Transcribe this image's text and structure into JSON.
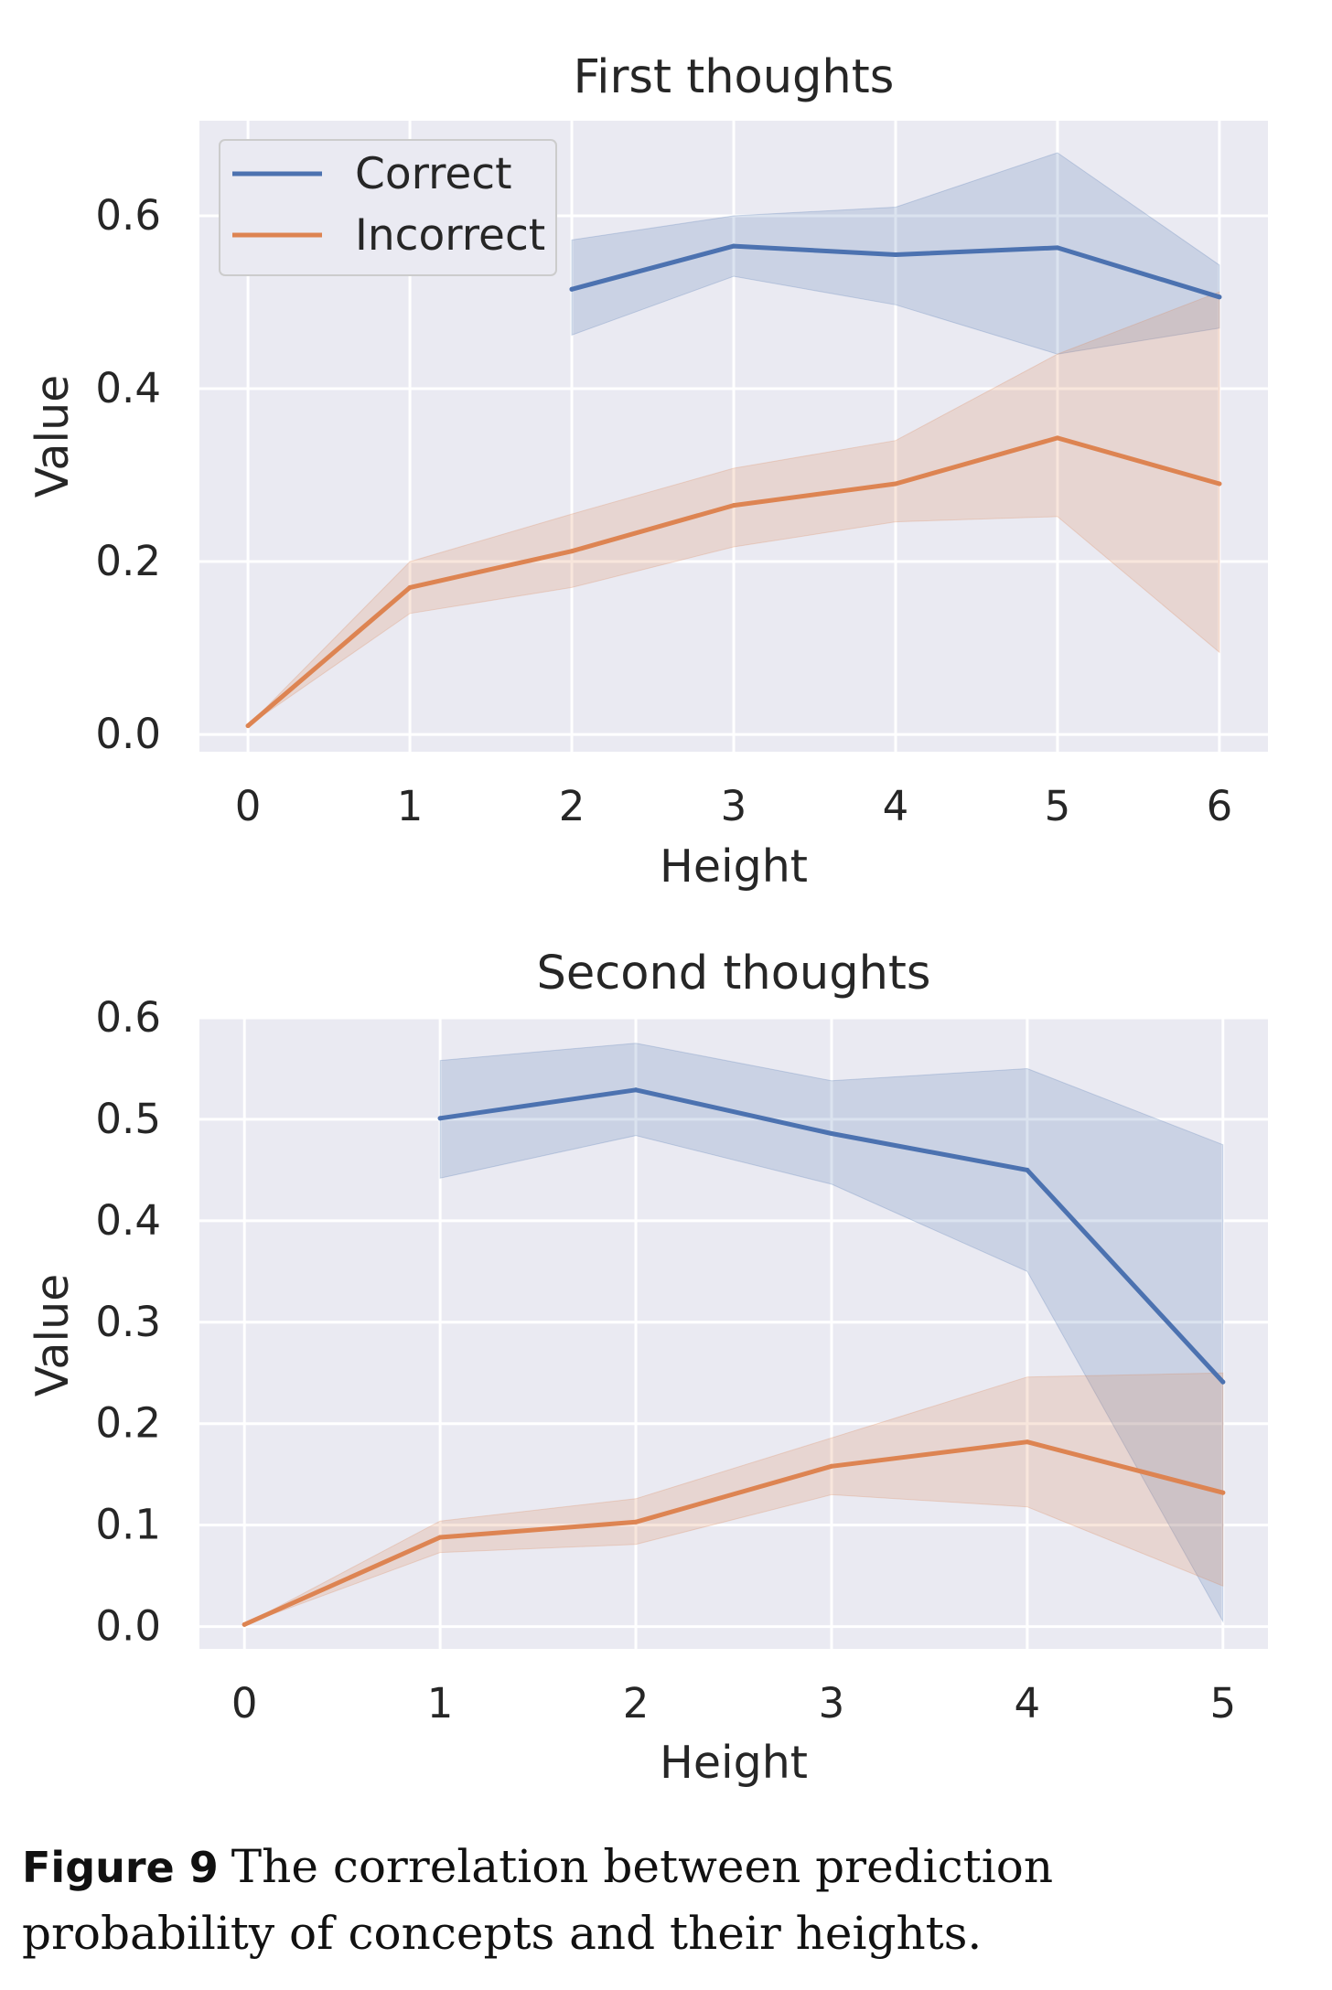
{
  "colors": {
    "correct": "#4c72b0",
    "incorrect": "#dd8452",
    "panel_bg": "#eaeaf2",
    "grid": "#ffffff"
  },
  "chart_data": [
    {
      "type": "line",
      "title": "First thoughts",
      "xlabel": "Height",
      "ylabel": "Value",
      "xlim": [
        -0.3,
        6.3
      ],
      "ylim": [
        -0.02,
        0.71
      ],
      "x_ticks": [
        "0",
        "1",
        "2",
        "3",
        "4",
        "5",
        "6"
      ],
      "y_ticks": [
        "0.0",
        "0.2",
        "0.4",
        "0.6"
      ],
      "legend": {
        "position": "top-left",
        "entries": [
          "Correct",
          "Incorrect"
        ]
      },
      "series": [
        {
          "name": "Correct",
          "x": [
            2,
            3,
            4,
            5,
            6
          ],
          "values": [
            0.515,
            0.565,
            0.555,
            0.563,
            0.506
          ],
          "lower": [
            0.462,
            0.53,
            0.497,
            0.44,
            0.47
          ],
          "upper": [
            0.572,
            0.6,
            0.61,
            0.673,
            0.543
          ]
        },
        {
          "name": "Incorrect",
          "x": [
            0,
            1,
            2,
            3,
            4,
            5,
            6
          ],
          "values": [
            0.01,
            0.17,
            0.212,
            0.265,
            0.29,
            0.343,
            0.29
          ],
          "lower": [
            0.01,
            0.14,
            0.17,
            0.217,
            0.246,
            0.252,
            0.095
          ],
          "upper": [
            0.01,
            0.2,
            0.255,
            0.308,
            0.34,
            0.44,
            0.512
          ]
        }
      ]
    },
    {
      "type": "line",
      "title": "Second thoughts",
      "xlabel": "Height",
      "ylabel": "Value",
      "xlim": [
        -0.23,
        5.23
      ],
      "ylim": [
        -0.022,
        0.6
      ],
      "x_ticks": [
        "0",
        "1",
        "2",
        "3",
        "4",
        "5"
      ],
      "y_ticks": [
        "0.0",
        "0.1",
        "0.2",
        "0.3",
        "0.4",
        "0.5",
        "0.6"
      ],
      "series": [
        {
          "name": "Correct",
          "x": [
            1,
            2,
            3,
            4,
            5
          ],
          "values": [
            0.501,
            0.529,
            0.486,
            0.45,
            0.241
          ],
          "lower": [
            0.442,
            0.484,
            0.436,
            0.35,
            0.005
          ],
          "upper": [
            0.558,
            0.575,
            0.538,
            0.55,
            0.475
          ]
        },
        {
          "name": "Incorrect",
          "x": [
            0,
            1,
            2,
            3,
            4,
            5
          ],
          "values": [
            0.002,
            0.088,
            0.103,
            0.158,
            0.182,
            0.132
          ],
          "lower": [
            0.002,
            0.073,
            0.081,
            0.13,
            0.118,
            0.04
          ],
          "upper": [
            0.002,
            0.104,
            0.126,
            0.186,
            0.246,
            0.25
          ]
        }
      ]
    }
  ],
  "caption": {
    "label": "Figure 9",
    "text": "The correlation between prediction probability of concepts and their heights."
  }
}
